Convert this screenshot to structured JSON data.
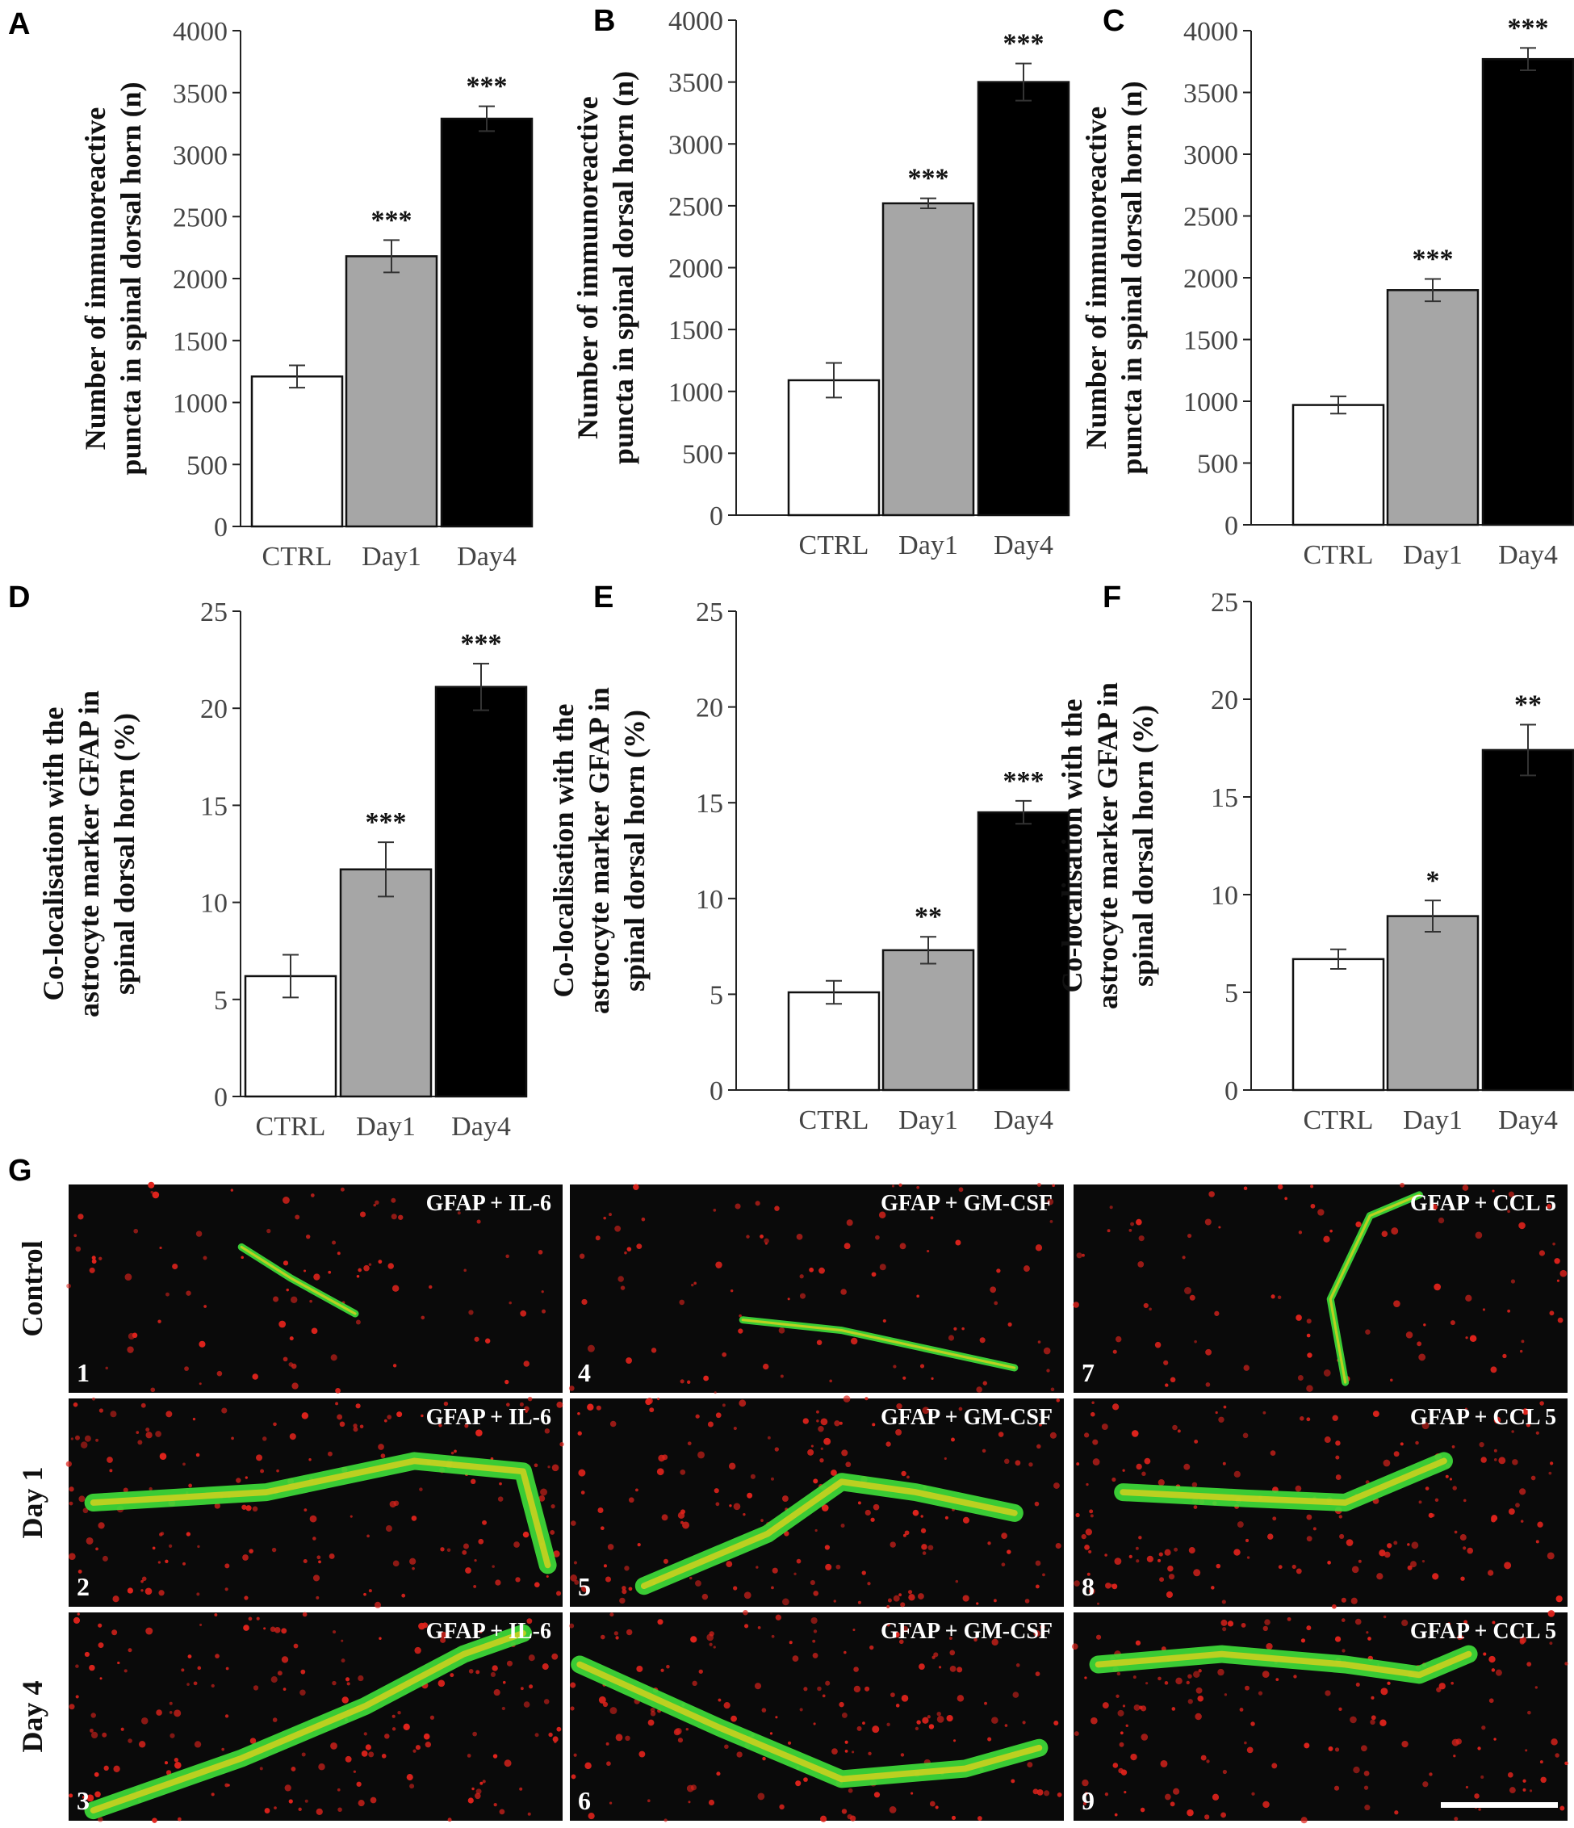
{
  "chart_data": [
    {
      "panel": "A",
      "type": "bar",
      "categories": [
        "CTRL",
        "Day1",
        "Day4"
      ],
      "values": [
        1210,
        2180,
        3290
      ],
      "errors": [
        90,
        130,
        100
      ],
      "significance": [
        "",
        "***",
        "***"
      ],
      "ylabel_lines": [
        "Number of immunoreactive",
        "puncta in spinal dorsal horn (n)"
      ],
      "ylim": [
        0,
        4000
      ],
      "yticks": [
        "0",
        "500",
        "1000",
        "1500",
        "2000",
        "2500",
        "3000",
        "3500",
        "4000"
      ],
      "bar_colors": [
        "#ffffff",
        "#a6a6a6",
        "#000000"
      ]
    },
    {
      "panel": "B",
      "type": "bar",
      "categories": [
        "CTRL",
        "Day1",
        "Day4"
      ],
      "values": [
        1090,
        2520,
        3500
      ],
      "errors": [
        140,
        40,
        150
      ],
      "significance": [
        "",
        "***",
        "***"
      ],
      "ylabel_lines": [
        "Number of immunoreactive",
        "puncta in spinal dorsal horn (n)"
      ],
      "ylim": [
        0,
        4000
      ],
      "yticks": [
        "0",
        "500",
        "1000",
        "1500",
        "2000",
        "2500",
        "3000",
        "3500",
        "4000"
      ],
      "bar_colors": [
        "#ffffff",
        "#a6a6a6",
        "#000000"
      ]
    },
    {
      "panel": "C",
      "type": "bar",
      "categories": [
        "CTRL",
        "Day1",
        "Day4"
      ],
      "values": [
        970,
        1900,
        3770
      ],
      "errors": [
        70,
        90,
        90
      ],
      "significance": [
        "",
        "***",
        "***"
      ],
      "ylabel_lines": [
        "Number of immunoreactive",
        "puncta in spinal dorsal horn (n)"
      ],
      "ylim": [
        0,
        4000
      ],
      "yticks": [
        "0",
        "500",
        "1000",
        "1500",
        "2000",
        "2500",
        "3000",
        "3500",
        "4000"
      ],
      "bar_colors": [
        "#ffffff",
        "#a6a6a6",
        "#000000"
      ]
    },
    {
      "panel": "D",
      "type": "bar",
      "categories": [
        "CTRL",
        "Day1",
        "Day4"
      ],
      "values": [
        6.2,
        11.7,
        21.1
      ],
      "errors": [
        1.1,
        1.4,
        1.2
      ],
      "significance": [
        "",
        "***",
        "***"
      ],
      "ylabel_lines": [
        "Co-localisation with the",
        "astrocyte marker GFAP in",
        "spinal dorsal horn  (%)"
      ],
      "ylim": [
        0,
        25
      ],
      "yticks": [
        "0",
        "5",
        "10",
        "15",
        "20",
        "25"
      ],
      "bar_colors": [
        "#ffffff",
        "#a6a6a6",
        "#000000"
      ]
    },
    {
      "panel": "E",
      "type": "bar",
      "categories": [
        "CTRL",
        "Day1",
        "Day4"
      ],
      "values": [
        5.1,
        7.3,
        14.5
      ],
      "errors": [
        0.6,
        0.7,
        0.6
      ],
      "significance": [
        "",
        "**",
        "***"
      ],
      "ylabel_lines": [
        "Co-localisation with the",
        "astrocyte marker GFAP in",
        "spinal dorsal horn  (%)"
      ],
      "ylim": [
        0,
        25
      ],
      "yticks": [
        "0",
        "5",
        "10",
        "15",
        "20",
        "25"
      ],
      "bar_colors": [
        "#ffffff",
        "#a6a6a6",
        "#000000"
      ]
    },
    {
      "panel": "F",
      "type": "bar",
      "categories": [
        "CTRL",
        "Day1",
        "Day4"
      ],
      "values": [
        6.7,
        8.9,
        17.4
      ],
      "errors": [
        0.5,
        0.8,
        1.3
      ],
      "significance": [
        "",
        "*",
        "**"
      ],
      "ylabel_lines": [
        "Co-localisation with the",
        "astrocyte marker GFAP in",
        "spinal dorsal horn  (%)"
      ],
      "ylim": [
        0,
        25
      ],
      "yticks": [
        "0",
        "5",
        "10",
        "15",
        "20",
        "25"
      ],
      "bar_colors": [
        "#ffffff",
        "#a6a6a6",
        "#000000"
      ]
    }
  ],
  "micrographs": {
    "panel": "G",
    "row_labels": [
      "Control",
      "Day 1",
      "Day 4"
    ],
    "column_labels": [
      "GFAP + IL-6",
      "GFAP + GM-CSF",
      "GFAP + CCL 5"
    ],
    "tiles": [
      {
        "number": "1",
        "label": "GFAP + IL-6"
      },
      {
        "number": "4",
        "label": "GFAP + GM-CSF"
      },
      {
        "number": "7",
        "label": "GFAP + CCL 5"
      },
      {
        "number": "2",
        "label": "GFAP + IL-6"
      },
      {
        "number": "5",
        "label": "GFAP + GM-CSF"
      },
      {
        "number": "8",
        "label": "GFAP + CCL 5"
      },
      {
        "number": "3",
        "label": "GFAP + IL-6"
      },
      {
        "number": "6",
        "label": "GFAP + GM-CSF"
      },
      {
        "number": "9",
        "label": "GFAP + CCL 5"
      }
    ],
    "colors": {
      "astrocyte": "#3fe03a",
      "puncta": "#e0231c",
      "overlap": "#f2d21a",
      "background": "#0a0a0a"
    }
  }
}
